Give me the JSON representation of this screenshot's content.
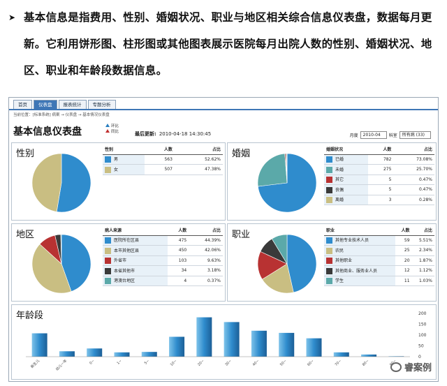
{
  "intro": {
    "bullet": "➤",
    "text": "基本信息是指费用、性别、婚姻状况、职业与地区相关综合信息仪表盘，数据每月更新。它利用饼形图、柱形图或其他图表展示医院每月出院人数的性别、婚姻状况、地区、职业和年龄段数据信息。"
  },
  "tabs": [
    "首页",
    "仪表盘",
    "报表统计",
    "专题分析"
  ],
  "breadcrumb": "当前位置：[标准系统] 病案 → 仪表盘 → 基本情况仪表盘",
  "dashboard": {
    "title": "基本信息仪表盘",
    "legend_up": "环比",
    "legend_down": "同比",
    "updated_label": "最后更新:",
    "updated_value": "2010-04-18 14:30:45",
    "month_label": "月度",
    "month_value": "2010-04",
    "dept_label": "科室",
    "dept_value": "所有病 (33)"
  },
  "panels": {
    "gender": {
      "title": "性别",
      "headers": [
        "性别",
        "人数",
        "占比"
      ],
      "rows": [
        {
          "label": "男",
          "count": "563",
          "pct": "52.62%",
          "color": "#2f8ccd",
          "value": 563
        },
        {
          "label": "女",
          "count": "507",
          "pct": "47.38%",
          "color": "#c9be82",
          "value": 507
        }
      ]
    },
    "marriage": {
      "title": "婚姻",
      "headers": [
        "婚姻状况",
        "人数",
        "占比"
      ],
      "rows": [
        {
          "label": "已婚",
          "count": "782",
          "pct": "73.08%",
          "color": "#2f8ccd",
          "value": 782
        },
        {
          "label": "未婚",
          "count": "275",
          "pct": "25.70%",
          "color": "#5ba9a9",
          "value": 275
        },
        {
          "label": "其它",
          "count": "5",
          "pct": "0.47%",
          "color": "#b83232",
          "value": 5
        },
        {
          "label": "丧偶",
          "count": "5",
          "pct": "0.47%",
          "color": "#3a3a3a",
          "value": 5
        },
        {
          "label": "离婚",
          "count": "3",
          "pct": "0.28%",
          "color": "#c9be82",
          "value": 3
        }
      ]
    },
    "region": {
      "title": "地区",
      "headers": [
        "病人来源",
        "人数",
        "占比"
      ],
      "rows": [
        {
          "label": "医院所在区县",
          "count": "475",
          "pct": "44.39%",
          "color": "#2f8ccd",
          "value": 475
        },
        {
          "label": "本市其他区县",
          "count": "450",
          "label_full": "",
          "pct": "42.06%",
          "color": "#c9be82",
          "value": 450
        },
        {
          "label": "外省市",
          "count": "103",
          "pct": "9.63%",
          "color": "#b83232",
          "value": 103
        },
        {
          "label": "本省其他市",
          "count": "34",
          "pct": "3.18%",
          "color": "#3a3a3a",
          "value": 34
        },
        {
          "label": "港澳台地区",
          "count": "4",
          "pct": "0.37%",
          "color": "#5ba9a9",
          "value": 4
        }
      ]
    },
    "job": {
      "title": "职业",
      "headers": [
        "职业",
        "人数",
        "占比"
      ],
      "rows": [
        {
          "label": "其他专业技术人员",
          "count": "59",
          "pct": "5.51%",
          "color": "#2f8ccd",
          "value": 59
        },
        {
          "label": "农民",
          "count": "25",
          "pct": "2.34%",
          "color": "#c9be82",
          "value": 25
        },
        {
          "label": "其他职业",
          "count": "20",
          "pct": "1.87%",
          "color": "#b83232",
          "value": 20
        },
        {
          "label": "其他商业、服务业人员",
          "count": "12",
          "pct": "1.12%",
          "color": "#3a3a3a",
          "value": 12
        },
        {
          "label": "学生",
          "count": "11",
          "pct": "1.03%",
          "color": "#5ba9a9",
          "value": 11
        }
      ]
    }
  },
  "age": {
    "title": "年龄段",
    "y_ticks": [
      "200",
      "150",
      "100",
      "50",
      "0"
    ]
  },
  "chart_data": {
    "type": "bar",
    "title": "年龄段",
    "categories": [
      "新生儿",
      "幼儿一年",
      "0~",
      "1~",
      "5~",
      "10~",
      "20~",
      "30~",
      "40~",
      "50~",
      "60~",
      "70~",
      "80~",
      "90~"
    ],
    "values": [
      108,
      25,
      38,
      20,
      22,
      92,
      182,
      160,
      120,
      110,
      85,
      20,
      10,
      2
    ],
    "ylim": [
      0,
      200
    ],
    "color": "#2f8ccd"
  },
  "watermark": "睿案例"
}
